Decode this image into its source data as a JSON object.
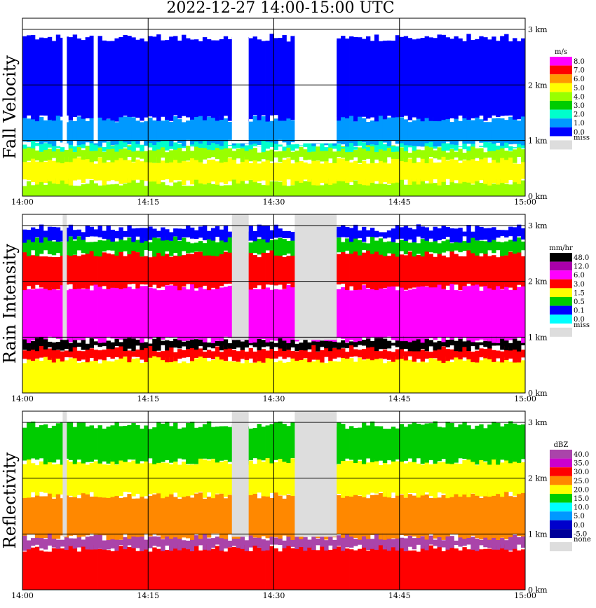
{
  "title": "2022-12-27   14:00-15:00 UTC",
  "chart_data": [
    {
      "type": "heatmap",
      "ylabel": "Fall Velocity",
      "unit": "m/s",
      "x_ticks": [
        "14:00",
        "14:15",
        "14:30",
        "14:45",
        "15:00"
      ],
      "y_ticks": [
        "0 km",
        "1 km",
        "2 km",
        "3 km"
      ],
      "ylim": [
        0,
        3.2
      ],
      "legend_missing_label": "miss",
      "legend": [
        {
          "label": "8.0",
          "color": "#ff00ff"
        },
        {
          "label": "7.0",
          "color": "#ff0000"
        },
        {
          "label": "6.0",
          "color": "#ff9900"
        },
        {
          "label": "5.0",
          "color": "#ffff00"
        },
        {
          "label": "4.0",
          "color": "#99ff00"
        },
        {
          "label": "3.0",
          "color": "#00cc00"
        },
        {
          "label": "2.0",
          "color": "#00ffcc"
        },
        {
          "label": "1.0",
          "color": "#0099ff"
        },
        {
          "label": "0.0",
          "color": "#0000ff"
        }
      ],
      "missing_color": "#dddddd",
      "layers": [
        {
          "h0": 0,
          "h1": 0.25,
          "color": "#99ff00"
        },
        {
          "h0": 0.25,
          "h1": 0.65,
          "color": "#ffff00"
        },
        {
          "h0": 0.65,
          "h1": 0.85,
          "color": "#99ff00"
        },
        {
          "h0": 0.85,
          "h1": 0.95,
          "color": "#00ffcc"
        },
        {
          "h0": 0.95,
          "h1": 1.4,
          "color": "#0099ff"
        },
        {
          "h0": 1.4,
          "h1": 2.85,
          "color": "#0000ff"
        }
      ],
      "gaps": [
        {
          "t0": 4.8,
          "t1": 5.3,
          "color": "#ffffff"
        },
        {
          "t0": 8.5,
          "t1": 9.0,
          "color": "#ffffff"
        },
        {
          "t0": 25.0,
          "t1": 27.0,
          "color": "#ffffff"
        },
        {
          "t0": 32.5,
          "t1": 37.5,
          "color": "#ffffff"
        }
      ]
    },
    {
      "type": "heatmap",
      "ylabel": "Rain Intensity",
      "unit": "mm/hr",
      "x_ticks": [
        "14:00",
        "14:15",
        "14:30",
        "14:45",
        "15:00"
      ],
      "y_ticks": [
        "0 km",
        "1 km",
        "2 km",
        "3 km"
      ],
      "ylim": [
        0,
        3.2
      ],
      "legend_missing_label": "miss",
      "legend": [
        {
          "label": "48.0",
          "color": "#000000"
        },
        {
          "label": "12.0",
          "color": "#aa00aa"
        },
        {
          "label": "6.0",
          "color": "#ff00ff"
        },
        {
          "label": "3.0",
          "color": "#ff0000"
        },
        {
          "label": "1.5",
          "color": "#ffff00"
        },
        {
          "label": "0.5",
          "color": "#00cc00"
        },
        {
          "label": "0.1",
          "color": "#0000ff"
        },
        {
          "label": "0.0",
          "color": "#00ffff"
        }
      ],
      "missing_color": "#dddddd",
      "layers": [
        {
          "h0": 0,
          "h1": 0.6,
          "color": "#ffff00"
        },
        {
          "h0": 0.6,
          "h1": 0.8,
          "color": "#ff0000"
        },
        {
          "h0": 0.8,
          "h1": 0.95,
          "color": "#000000"
        },
        {
          "h0": 0.95,
          "h1": 1.9,
          "color": "#ff00ff"
        },
        {
          "h0": 1.9,
          "h1": 2.5,
          "color": "#ff0000"
        },
        {
          "h0": 2.5,
          "h1": 2.75,
          "color": "#00cc00"
        },
        {
          "h0": 2.75,
          "h1": 2.95,
          "color": "#0000ff"
        }
      ],
      "gaps": [
        {
          "t0": 4.8,
          "t1": 5.3,
          "color": "#dddddd"
        },
        {
          "t0": 25.0,
          "t1": 27.0,
          "color": "#dddddd"
        },
        {
          "t0": 32.5,
          "t1": 37.5,
          "color": "#dddddd"
        }
      ]
    },
    {
      "type": "heatmap",
      "ylabel": "Reflectivity",
      "unit": "dBZ",
      "x_ticks": [
        "14:00",
        "14:15",
        "14:30",
        "14:45",
        "15:00"
      ],
      "y_ticks": [
        "0 km",
        "1 km",
        "2 km",
        "3 km"
      ],
      "ylim": [
        0,
        3.2
      ],
      "legend_missing_label": "none",
      "legend": [
        {
          "label": "40.0",
          "color": "#aa44aa"
        },
        {
          "label": "35.0",
          "color": "#cc00cc"
        },
        {
          "label": "30.0",
          "color": "#ff0000"
        },
        {
          "label": "25.0",
          "color": "#ff8800"
        },
        {
          "label": "20.0",
          "color": "#ffff00"
        },
        {
          "label": "15.0",
          "color": "#00cc00"
        },
        {
          "label": "10.0",
          "color": "#00ffff"
        },
        {
          "label": "5.0",
          "color": "#0099ff"
        },
        {
          "label": "0.0",
          "color": "#0000cc"
        },
        {
          "label": "-5.0",
          "color": "#000099"
        }
      ],
      "missing_color": "#dddddd",
      "layers": [
        {
          "h0": 0,
          "h1": 0.75,
          "color": "#ff0000"
        },
        {
          "h0": 0.75,
          "h1": 0.95,
          "color": "#aa44aa"
        },
        {
          "h0": 0.95,
          "h1": 1.7,
          "color": "#ff8800"
        },
        {
          "h0": 1.7,
          "h1": 2.3,
          "color": "#ffff00"
        },
        {
          "h0": 2.3,
          "h1": 2.95,
          "color": "#00cc00"
        }
      ],
      "gaps": [
        {
          "t0": 4.8,
          "t1": 5.3,
          "color": "#dddddd"
        },
        {
          "t0": 25.0,
          "t1": 27.0,
          "color": "#dddddd"
        },
        {
          "t0": 32.5,
          "t1": 37.5,
          "color": "#dddddd"
        }
      ]
    }
  ]
}
